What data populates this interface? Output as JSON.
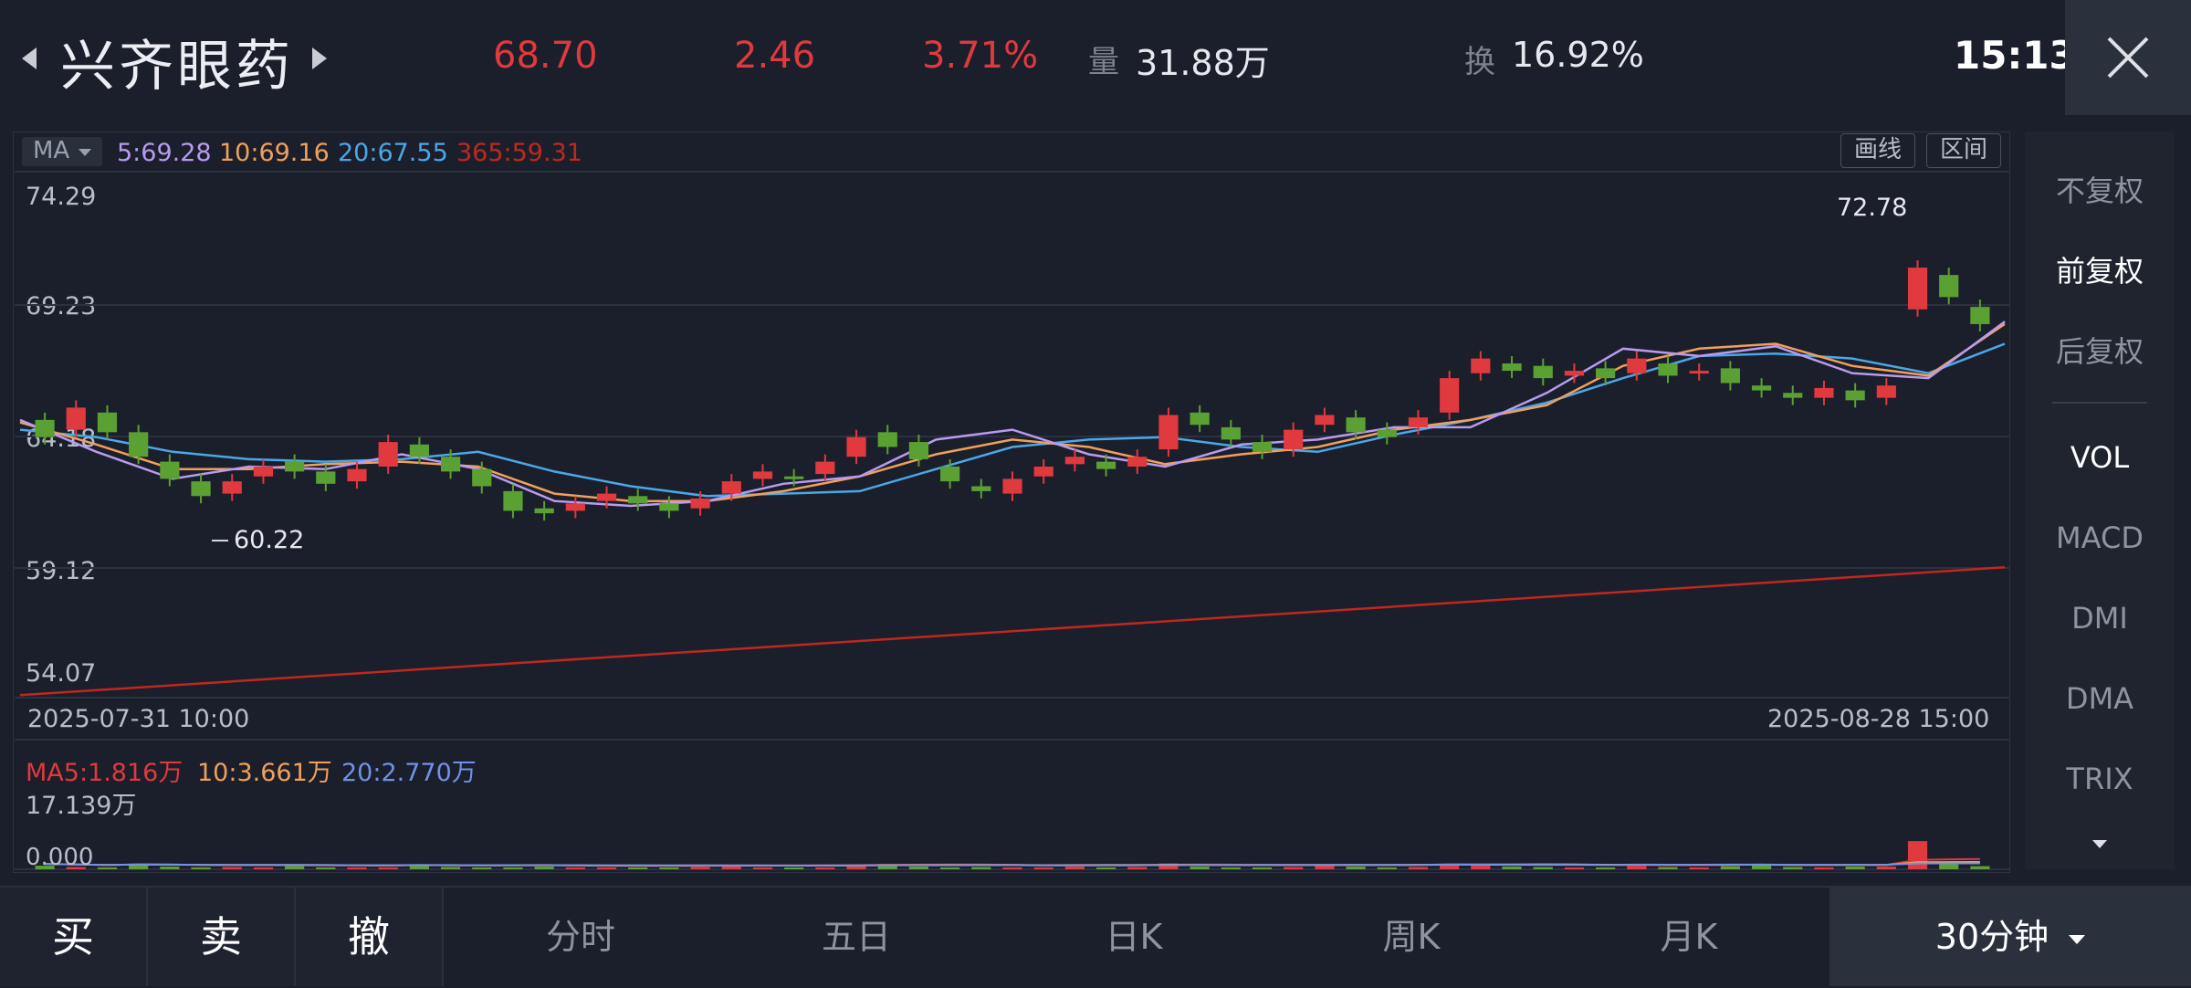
{
  "header": {
    "stock_name": "兴齐眼药",
    "price": "68.70",
    "change": "2.46",
    "change_pct": "3.71%",
    "volume_label": "量",
    "volume_value": "31.88万",
    "turnover_label": "换",
    "turnover_value": "16.92%",
    "time": "15:13"
  },
  "ma_bar": {
    "selector": "MA",
    "ma5": "5:69.28",
    "ma10": "10:69.16",
    "ma20": "20:67.55",
    "ma365": "365:59.31",
    "draw_line": "画线",
    "range": "区间"
  },
  "price_axis": [
    "74.29",
    "69.23",
    "64.18",
    "59.12",
    "54.07"
  ],
  "high_marker": "72.78",
  "low_marker": "60.22",
  "dates": {
    "start": "2025-07-31  10:00",
    "end": "2025-08-28  15:00"
  },
  "volume_panel": {
    "ma5": "MA5:1.816万",
    "ma10": "10:3.661万",
    "ma20": "20:2.770万",
    "max": "17.139万",
    "zero": "0.000"
  },
  "side_panel": {
    "items": [
      "不复权",
      "前复权",
      "后复权",
      "VOL",
      "MACD",
      "DMI",
      "DMA",
      "TRIX"
    ],
    "active": [
      "前复权",
      "VOL"
    ]
  },
  "bottom_bar": {
    "buy": "买",
    "sell": "卖",
    "cancel": "撤",
    "tabs": [
      "分时",
      "五日",
      "日K",
      "周K",
      "月K"
    ],
    "period": "30分钟"
  },
  "colors": {
    "up": "#e0393e",
    "down": "#5aa032",
    "ma5": "#b99bf0",
    "ma10": "#f0a05a",
    "ma20": "#4aa8e8",
    "ma365": "#c0281e"
  },
  "chart_data": {
    "type": "candlestick",
    "ylim": [
      54.07,
      74.29
    ],
    "ma20": [
      64.9,
      64.6,
      64.0,
      63.7,
      63.6,
      63.7,
      64.0,
      63.2,
      62.6,
      62.2,
      62.3,
      62.4,
      63.3,
      64.2,
      64.5,
      64.6,
      64.2,
      64.0,
      64.7,
      65.3,
      66.0,
      67.0,
      67.9,
      68.0,
      67.8,
      67.2,
      68.4
    ],
    "ma10": [
      65.2,
      64.3,
      63.3,
      63.3,
      63.5,
      63.6,
      63.4,
      62.3,
      62.0,
      62.0,
      62.4,
      63.0,
      63.9,
      64.5,
      64.2,
      63.5,
      63.9,
      64.2,
      64.9,
      65.3,
      65.9,
      67.5,
      68.2,
      68.4,
      67.5,
      67.1,
      69.2
    ],
    "ma5": [
      65.3,
      64.0,
      62.9,
      63.4,
      63.3,
      63.9,
      63.3,
      62.0,
      61.8,
      62.0,
      62.7,
      63.0,
      64.5,
      64.9,
      63.9,
      63.4,
      64.3,
      64.5,
      65.0,
      65.0,
      66.4,
      68.2,
      67.9,
      68.3,
      67.2,
      67.0,
      69.3
    ],
    "ma365": [
      54.1,
      59.3
    ],
    "candles": [
      [
        65.3,
        64.6,
        0
      ],
      [
        64.9,
        65.8,
        1
      ],
      [
        65.6,
        64.8,
        0
      ],
      [
        64.8,
        63.8,
        0
      ],
      [
        63.6,
        62.9,
        0
      ],
      [
        62.8,
        62.2,
        0
      ],
      [
        62.3,
        62.8,
        1
      ],
      [
        63.0,
        63.4,
        1
      ],
      [
        63.6,
        63.2,
        0
      ],
      [
        63.2,
        62.7,
        0
      ],
      [
        62.8,
        63.3,
        1
      ],
      [
        63.4,
        64.4,
        1
      ],
      [
        64.3,
        63.8,
        0
      ],
      [
        63.8,
        63.2,
        0
      ],
      [
        63.3,
        62.6,
        0
      ],
      [
        62.4,
        61.6,
        0
      ],
      [
        61.7,
        61.5,
        0
      ],
      [
        61.6,
        61.9,
        1
      ],
      [
        62.0,
        62.3,
        1
      ],
      [
        62.2,
        61.9,
        0
      ],
      [
        61.9,
        61.6,
        0
      ],
      [
        61.7,
        62.1,
        1
      ],
      [
        62.3,
        62.8,
        1
      ],
      [
        62.9,
        63.2,
        1
      ],
      [
        63.0,
        62.9,
        0
      ],
      [
        63.1,
        63.6,
        1
      ],
      [
        63.8,
        64.6,
        1
      ],
      [
        64.8,
        64.2,
        0
      ],
      [
        64.4,
        63.7,
        0
      ],
      [
        63.4,
        62.8,
        0
      ],
      [
        62.6,
        62.4,
        0
      ],
      [
        62.3,
        62.9,
        1
      ],
      [
        63.0,
        63.4,
        1
      ],
      [
        63.5,
        63.8,
        1
      ],
      [
        63.6,
        63.3,
        0
      ],
      [
        63.4,
        63.8,
        1
      ],
      [
        64.1,
        65.5,
        1
      ],
      [
        65.6,
        65.1,
        0
      ],
      [
        65.0,
        64.5,
        0
      ],
      [
        64.4,
        64.0,
        0
      ],
      [
        64.1,
        64.9,
        1
      ],
      [
        65.1,
        65.5,
        1
      ],
      [
        65.4,
        64.8,
        0
      ],
      [
        64.9,
        64.6,
        0
      ],
      [
        65.0,
        65.4,
        1
      ],
      [
        65.6,
        67.0,
        1
      ],
      [
        67.2,
        67.8,
        1
      ],
      [
        67.6,
        67.3,
        0
      ],
      [
        67.5,
        67.0,
        0
      ],
      [
        67.1,
        67.3,
        1
      ],
      [
        67.4,
        67.0,
        0
      ],
      [
        67.2,
        67.8,
        1
      ],
      [
        67.6,
        67.1,
        0
      ],
      [
        67.2,
        67.3,
        1
      ],
      [
        67.4,
        66.8,
        0
      ],
      [
        66.7,
        66.5,
        0
      ],
      [
        66.4,
        66.2,
        0
      ],
      [
        66.2,
        66.6,
        1
      ],
      [
        66.5,
        66.1,
        0
      ],
      [
        66.2,
        66.7,
        1
      ],
      [
        71.5,
        69.8,
        1
      ],
      [
        71.2,
        70.3,
        0
      ],
      [
        69.9,
        69.2,
        0
      ]
    ],
    "volumes": [
      0.8,
      0.5,
      0.4,
      0.9,
      0.6,
      0.3,
      0.5,
      0.4,
      0.7,
      0.3,
      0.2,
      0.4,
      1.0,
      0.5,
      0.3,
      0.4,
      0.6,
      0.3,
      0.3,
      0.2,
      0.3,
      0.5,
      0.8,
      0.4,
      0.3,
      0.4,
      0.7,
      1.2,
      0.6,
      0.4,
      0.5,
      0.3,
      0.4,
      0.6,
      0.4,
      0.5,
      1.3,
      0.6,
      0.4,
      0.3,
      0.5,
      0.8,
      0.6,
      0.4,
      0.5,
      1.1,
      1.0,
      0.6,
      0.5,
      0.4,
      0.3,
      0.9,
      0.5,
      0.4,
      0.7,
      0.9,
      0.5,
      0.4,
      0.6,
      0.6,
      6.3,
      1.2,
      0.7
    ],
    "volume_ylim": [
      0,
      17.139
    ]
  }
}
